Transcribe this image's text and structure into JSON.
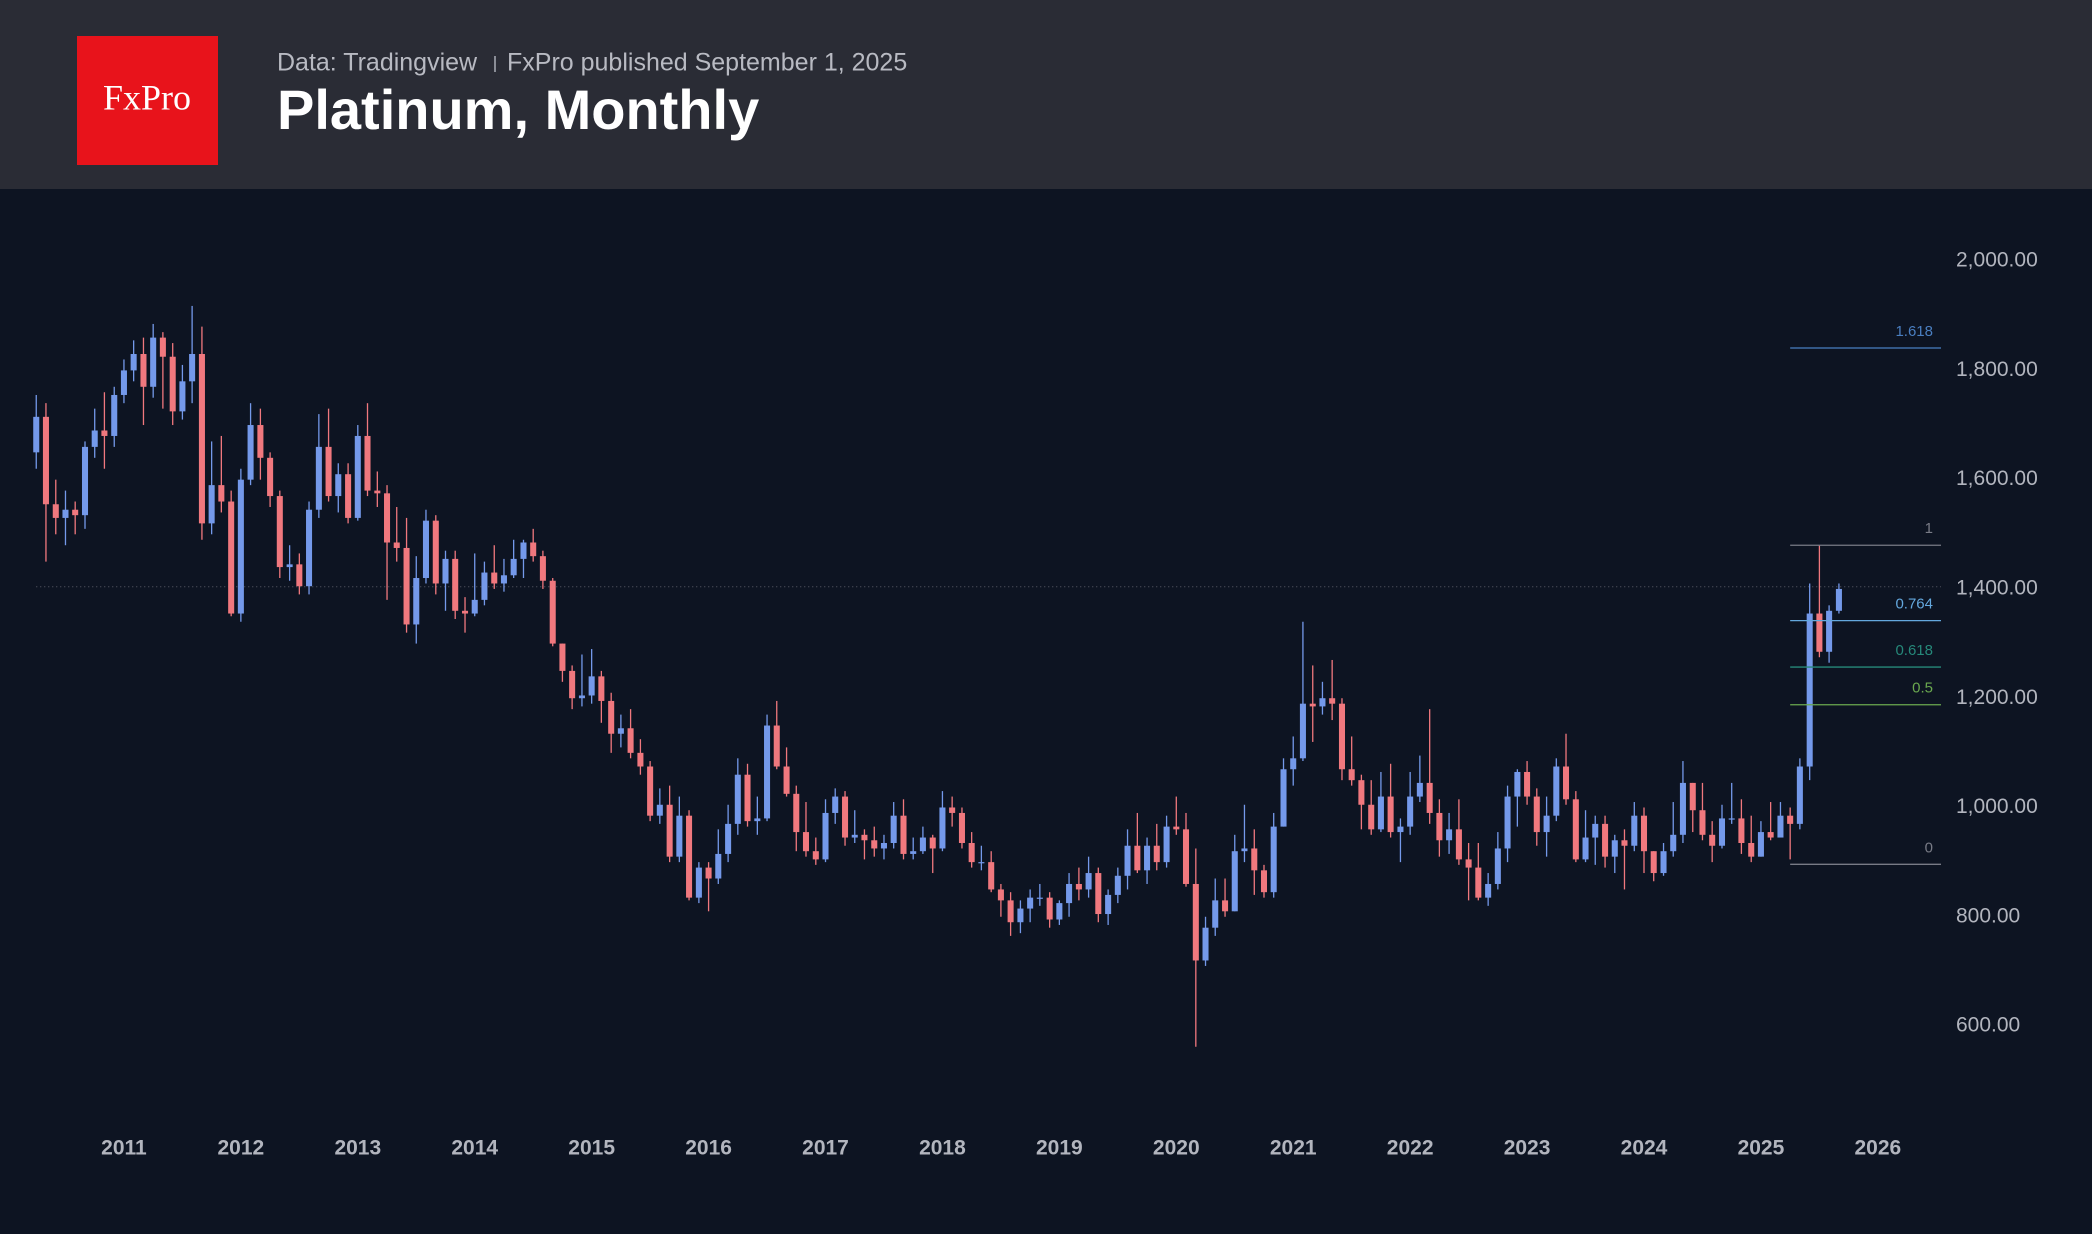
{
  "logo": "FxPro",
  "source": "Data: Tradingview",
  "published": "FxPro published September 1, 2025",
  "chart_data": {
    "type": "candlestick",
    "title": "Platinum, Monthly",
    "up_color": "#7499ea",
    "down_color": "#f0787e",
    "xlim": [
      2009.94,
      2026.54
    ],
    "xticks": [
      2011,
      2012,
      2013,
      2014,
      2015,
      2016,
      2017,
      2018,
      2019,
      2020,
      2021,
      2022,
      2023,
      2024,
      2025,
      2026
    ],
    "ylim": [
      439,
      2132
    ],
    "yticks": [
      {
        "value": 600,
        "label": "600.00"
      },
      {
        "value": 800,
        "label": "800.00"
      },
      {
        "value": 1000,
        "label": "1,000.00"
      },
      {
        "value": 1200,
        "label": "1,200.00"
      },
      {
        "value": 1400,
        "label": "1,400.00"
      },
      {
        "value": 1600,
        "label": "1,600.00"
      },
      {
        "value": 1800,
        "label": "1,800.00"
      },
      {
        "value": 2000,
        "label": "2,000.00"
      }
    ],
    "price_line": 1404,
    "fib_start": 2025.25,
    "fib_levels": [
      {
        "label": "1.618",
        "price": 1841,
        "color": "#4a7fc1"
      },
      {
        "label": "1",
        "price": 1480,
        "color": "#787b86"
      },
      {
        "label": "0.764",
        "price": 1342,
        "color": "#64a8de"
      },
      {
        "label": "0.618",
        "price": 1257,
        "color": "#26897a"
      },
      {
        "label": "0.5",
        "price": 1188,
        "color": "#6aa84f"
      },
      {
        "label": "0",
        "price": 896,
        "color": "#787b86"
      }
    ],
    "x": [
      2010.25,
      2010.333,
      2010.417,
      2010.5,
      2010.583,
      2010.667,
      2010.75,
      2010.833,
      2010.917,
      2011,
      2011.083,
      2011.167,
      2011.25,
      2011.333,
      2011.417,
      2011.5,
      2011.583,
      2011.667,
      2011.75,
      2011.833,
      2011.917,
      2012,
      2012.083,
      2012.167,
      2012.25,
      2012.333,
      2012.417,
      2012.5,
      2012.583,
      2012.667,
      2012.75,
      2012.833,
      2012.917,
      2013,
      2013.083,
      2013.167,
      2013.25,
      2013.333,
      2013.417,
      2013.5,
      2013.583,
      2013.667,
      2013.75,
      2013.833,
      2013.917,
      2014,
      2014.083,
      2014.167,
      2014.25,
      2014.333,
      2014.417,
      2014.5,
      2014.583,
      2014.667,
      2014.75,
      2014.833,
      2014.917,
      2015,
      2015.083,
      2015.167,
      2015.25,
      2015.333,
      2015.417,
      2015.5,
      2015.583,
      2015.667,
      2015.75,
      2015.833,
      2015.917,
      2016,
      2016.083,
      2016.167,
      2016.25,
      2016.333,
      2016.417,
      2016.5,
      2016.583,
      2016.667,
      2016.75,
      2016.833,
      2016.917,
      2017,
      2017.083,
      2017.167,
      2017.25,
      2017.333,
      2017.417,
      2017.5,
      2017.583,
      2017.667,
      2017.75,
      2017.833,
      2017.917,
      2018,
      2018.083,
      2018.167,
      2018.25,
      2018.333,
      2018.417,
      2018.5,
      2018.583,
      2018.667,
      2018.75,
      2018.833,
      2018.917,
      2019,
      2019.083,
      2019.167,
      2019.25,
      2019.333,
      2019.417,
      2019.5,
      2019.583,
      2019.667,
      2019.75,
      2019.833,
      2019.917,
      2020,
      2020.083,
      2020.167,
      2020.25,
      2020.333,
      2020.417,
      2020.5,
      2020.583,
      2020.667,
      2020.75,
      2020.833,
      2020.917,
      2021,
      2021.083,
      2021.167,
      2021.25,
      2021.333,
      2021.417,
      2021.5,
      2021.583,
      2021.667,
      2021.75,
      2021.833,
      2021.917,
      2022,
      2022.083,
      2022.167,
      2022.25,
      2022.333,
      2022.417,
      2022.5,
      2022.583,
      2022.667,
      2022.75,
      2022.833,
      2022.917,
      2023,
      2023.083,
      2023.167,
      2023.25,
      2023.333,
      2023.417,
      2023.5,
      2023.583,
      2023.667,
      2023.75,
      2023.833,
      2023.917,
      2024,
      2024.083,
      2024.167,
      2024.25,
      2024.333,
      2024.417,
      2024.5,
      2024.583,
      2024.667,
      2024.75,
      2024.833,
      2024.917,
      2025,
      2025.083,
      2025.167,
      2025.25,
      2025.333,
      2025.417,
      2025.5,
      2025.583,
      2025.667
    ],
    "open": [
      1650,
      1715,
      1555,
      1530,
      1545,
      1535,
      1660,
      1690,
      1680,
      1755,
      1800,
      1830,
      1770,
      1860,
      1825,
      1725,
      1780,
      1830,
      1520,
      1590,
      1560,
      1355,
      1600,
      1700,
      1640,
      1570,
      1440,
      1445,
      1405,
      1545,
      1660,
      1570,
      1610,
      1530,
      1680,
      1580,
      1575,
      1485,
      1475,
      1335,
      1420,
      1525,
      1410,
      1455,
      1360,
      1355,
      1380,
      1430,
      1410,
      1425,
      1455,
      1485,
      1460,
      1415,
      1300,
      1250,
      1200,
      1205,
      1240,
      1195,
      1135,
      1145,
      1100,
      1075,
      985,
      1005,
      910,
      985,
      835,
      890,
      870,
      915,
      970,
      1060,
      975,
      980,
      1150,
      1075,
      1025,
      955,
      920,
      905,
      990,
      1020,
      945,
      950,
      940,
      925,
      935,
      985,
      915,
      920,
      945,
      925,
      1000,
      990,
      935,
      900,
      900,
      850,
      830,
      790,
      815,
      835,
      835,
      795,
      825,
      860,
      850,
      880,
      805,
      840,
      875,
      930,
      885,
      930,
      900,
      965,
      960,
      860,
      720,
      780,
      830,
      810,
      920,
      925,
      885,
      845,
      965,
      1070,
      1090,
      1190,
      1185,
      1200,
      1190,
      1070,
      1050,
      1005,
      960,
      1020,
      955,
      965,
      1020,
      1045,
      990,
      940,
      960,
      905,
      890,
      835,
      860,
      925,
      1020,
      1065,
      1020,
      955,
      985,
      1075,
      1015,
      905,
      945,
      970,
      910,
      940,
      930,
      985,
      920,
      880,
      920,
      950,
      1045,
      995,
      950,
      930,
      980,
      980,
      935,
      910,
      955,
      945,
      985,
      970,
      1075,
      1355,
      1285,
      1360
    ],
    "high": [
      1755,
      1740,
      1600,
      1580,
      1560,
      1670,
      1730,
      1760,
      1770,
      1820,
      1855,
      1860,
      1885,
      1870,
      1850,
      1810,
      1918,
      1880,
      1670,
      1680,
      1580,
      1620,
      1740,
      1730,
      1650,
      1580,
      1480,
      1465,
      1560,
      1720,
      1730,
      1630,
      1630,
      1700,
      1740,
      1615,
      1590,
      1550,
      1530,
      1460,
      1545,
      1535,
      1470,
      1470,
      1385,
      1465,
      1450,
      1480,
      1455,
      1490,
      1490,
      1510,
      1470,
      1420,
      1300,
      1260,
      1280,
      1290,
      1250,
      1210,
      1170,
      1180,
      1125,
      1085,
      1035,
      1040,
      1020,
      995,
      900,
      900,
      960,
      1005,
      1090,
      1080,
      1020,
      1170,
      1195,
      1110,
      1040,
      1010,
      945,
      1015,
      1035,
      1030,
      995,
      960,
      965,
      950,
      1010,
      1015,
      945,
      965,
      950,
      1030,
      1020,
      1000,
      955,
      930,
      920,
      860,
      845,
      830,
      850,
      860,
      845,
      830,
      880,
      890,
      910,
      890,
      850,
      890,
      960,
      990,
      945,
      970,
      985,
      1020,
      990,
      925,
      800,
      870,
      870,
      950,
      1005,
      960,
      895,
      990,
      1090,
      1130,
      1340,
      1260,
      1230,
      1270,
      1200,
      1130,
      1060,
      1050,
      1065,
      1080,
      980,
      1065,
      1095,
      1180,
      1015,
      990,
      1015,
      935,
      935,
      880,
      955,
      1040,
      1070,
      1085,
      1035,
      1020,
      1090,
      1135,
      1030,
      995,
      985,
      985,
      950,
      960,
      1010,
      1000,
      920,
      935,
      1010,
      1085,
      1045,
      1045,
      975,
      1005,
      1045,
      1015,
      985,
      975,
      1010,
      1010,
      1000,
      1090,
      1410,
      1480,
      1370,
      1410
    ],
    "low": [
      1620,
      1450,
      1500,
      1480,
      1500,
      1510,
      1640,
      1620,
      1660,
      1740,
      1780,
      1700,
      1750,
      1730,
      1700,
      1710,
      1740,
      1490,
      1500,
      1540,
      1350,
      1340,
      1590,
      1600,
      1550,
      1420,
      1415,
      1390,
      1390,
      1530,
      1560,
      1540,
      1520,
      1525,
      1570,
      1550,
      1380,
      1450,
      1320,
      1300,
      1410,
      1390,
      1360,
      1345,
      1320,
      1350,
      1370,
      1400,
      1395,
      1420,
      1420,
      1450,
      1400,
      1295,
      1230,
      1180,
      1185,
      1190,
      1155,
      1100,
      1110,
      1090,
      1060,
      975,
      970,
      900,
      900,
      830,
      825,
      810,
      860,
      900,
      950,
      965,
      950,
      975,
      1070,
      1020,
      920,
      910,
      895,
      900,
      970,
      930,
      935,
      905,
      910,
      905,
      925,
      905,
      905,
      915,
      880,
      920,
      965,
      925,
      890,
      885,
      845,
      800,
      765,
      770,
      790,
      820,
      780,
      785,
      800,
      830,
      835,
      790,
      785,
      825,
      850,
      880,
      860,
      885,
      890,
      950,
      855,
      562,
      710,
      765,
      800,
      810,
      900,
      840,
      835,
      835,
      965,
      1040,
      1085,
      1120,
      1170,
      1160,
      1050,
      1040,
      960,
      950,
      955,
      945,
      900,
      950,
      1010,
      970,
      910,
      915,
      895,
      830,
      830,
      820,
      850,
      900,
      965,
      1005,
      930,
      910,
      975,
      1005,
      900,
      900,
      895,
      890,
      880,
      850,
      920,
      880,
      865,
      875,
      910,
      935,
      955,
      940,
      900,
      925,
      970,
      915,
      900,
      910,
      940,
      950,
      905,
      960,
      1050,
      1275,
      1265,
      1355
    ],
    "close": [
      1715,
      1555,
      1530,
      1545,
      1535,
      1660,
      1690,
      1680,
      1755,
      1800,
      1830,
      1770,
      1860,
      1825,
      1725,
      1780,
      1830,
      1520,
      1590,
      1560,
      1355,
      1600,
      1700,
      1640,
      1570,
      1440,
      1445,
      1405,
      1545,
      1660,
      1570,
      1610,
      1530,
      1680,
      1580,
      1575,
      1485,
      1475,
      1335,
      1420,
      1525,
      1410,
      1455,
      1360,
      1355,
      1380,
      1430,
      1410,
      1425,
      1455,
      1485,
      1460,
      1415,
      1300,
      1250,
      1200,
      1205,
      1240,
      1195,
      1135,
      1145,
      1100,
      1075,
      985,
      1005,
      910,
      985,
      835,
      890,
      870,
      915,
      970,
      1060,
      975,
      980,
      1150,
      1075,
      1025,
      955,
      920,
      905,
      990,
      1020,
      945,
      950,
      940,
      925,
      935,
      985,
      915,
      920,
      945,
      925,
      1000,
      990,
      935,
      900,
      900,
      850,
      830,
      790,
      815,
      835,
      835,
      795,
      825,
      860,
      850,
      880,
      805,
      840,
      875,
      930,
      885,
      930,
      900,
      965,
      960,
      860,
      720,
      780,
      830,
      810,
      920,
      925,
      885,
      845,
      965,
      1070,
      1090,
      1190,
      1185,
      1200,
      1190,
      1070,
      1050,
      1005,
      960,
      1020,
      955,
      965,
      1020,
      1045,
      990,
      940,
      960,
      905,
      890,
      835,
      860,
      925,
      1020,
      1065,
      1020,
      955,
      985,
      1075,
      1015,
      905,
      945,
      970,
      910,
      940,
      930,
      985,
      920,
      880,
      920,
      950,
      1045,
      995,
      950,
      930,
      980,
      980,
      935,
      910,
      955,
      945,
      985,
      970,
      1075,
      1355,
      1285,
      1360,
      1400
    ]
  }
}
